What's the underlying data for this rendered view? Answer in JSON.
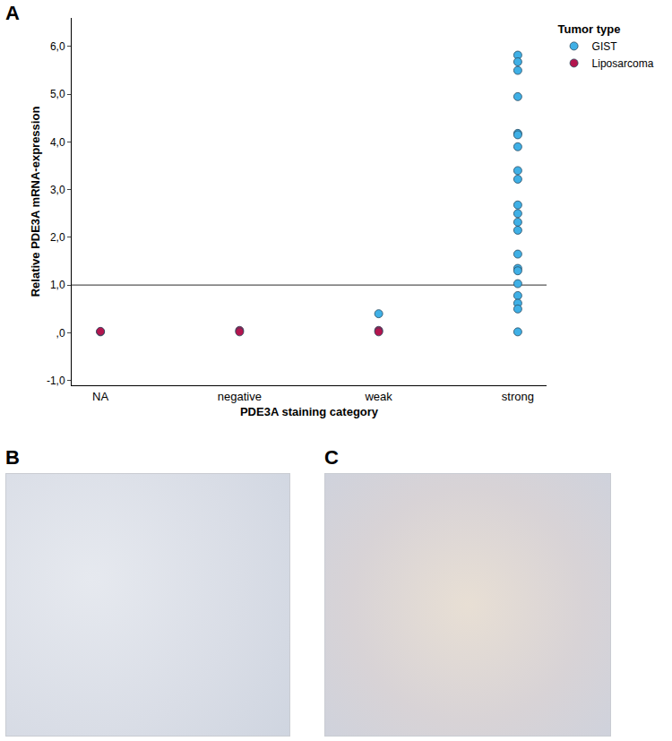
{
  "chart_data": {
    "type": "scatter",
    "panel_letters": [
      "A",
      "B",
      "C"
    ],
    "x_label": "PDE3A staining category",
    "y_label": "Relative PDE3A mRNA-expression",
    "categories": [
      "NA",
      "negative",
      "weak",
      "strong"
    ],
    "ylim": [
      -1.1,
      6.6
    ],
    "yticks": [
      {
        "value": -1,
        "label": "-1,0"
      },
      {
        "value": 0,
        "label": ",0"
      },
      {
        "value": 1,
        "label": "1,0"
      },
      {
        "value": 2,
        "label": "2,0"
      },
      {
        "value": 3,
        "label": "3,0"
      },
      {
        "value": 4,
        "label": "4,0"
      },
      {
        "value": 5,
        "label": "5,0"
      },
      {
        "value": 6,
        "label": "6,0"
      }
    ],
    "reference_line": 1,
    "grid": false,
    "legend": "right",
    "legend_title": "Tumor type",
    "marker": "circle",
    "series": [
      {
        "name": "GIST",
        "color": "#3fb0e6",
        "x": [
          "weak",
          "strong",
          "strong",
          "strong",
          "strong",
          "strong",
          "strong",
          "strong",
          "strong",
          "strong",
          "strong",
          "strong",
          "strong",
          "strong",
          "strong",
          "strong",
          "strong",
          "strong",
          "strong",
          "strong",
          "strong",
          "strong"
        ],
        "values": [
          0.4,
          5.82,
          5.68,
          5.5,
          4.95,
          4.18,
          4.15,
          3.9,
          3.4,
          3.22,
          2.68,
          2.5,
          2.32,
          2.15,
          1.65,
          1.35,
          1.3,
          1.03,
          0.78,
          0.62,
          0.5,
          0.02
        ]
      },
      {
        "name": "Liposarcoma",
        "color": "#b3154e",
        "x": [
          "NA",
          "NA",
          "negative",
          "negative",
          "weak",
          "weak"
        ],
        "values": [
          0.02,
          0.03,
          0.05,
          0.02,
          0.05,
          0.02
        ]
      }
    ]
  }
}
